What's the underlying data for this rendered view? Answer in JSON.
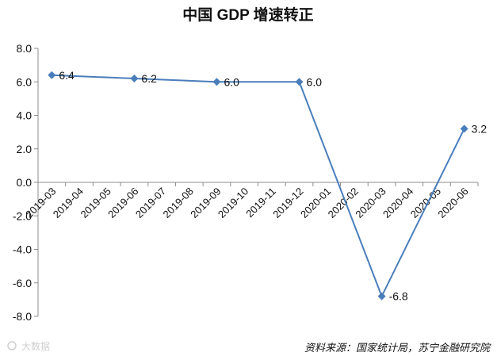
{
  "chart_data": {
    "type": "line",
    "title": "中国 GDP 增速转正",
    "categories": [
      "2019-03",
      "2019-04",
      "2019-05",
      "2019-06",
      "2019-07",
      "2019-08",
      "2019-09",
      "2019-10",
      "2019-11",
      "2019-12",
      "2020-01",
      "2020-02",
      "2020-03",
      "2020-04",
      "2020-05",
      "2020-06"
    ],
    "y_ticks": [
      "8.0",
      "6.0",
      "4.0",
      "2.0",
      "0.0",
      "-2.0",
      "-4.0",
      "-6.0",
      "-8.0"
    ],
    "ylim": [
      -8,
      8
    ],
    "series": [
      {
        "color": "#4a7ebb",
        "marker": "diamond",
        "points": [
          {
            "x": "2019-03",
            "y": 6.4,
            "label": "6.4"
          },
          {
            "x": "2019-06",
            "y": 6.2,
            "label": "6.2"
          },
          {
            "x": "2019-09",
            "y": 6.0,
            "label": "6.0"
          },
          {
            "x": "2019-12",
            "y": 6.0,
            "label": "6.0"
          },
          {
            "x": "2020-03",
            "y": -6.8,
            "label": "-6.8"
          },
          {
            "x": "2020-06",
            "y": 3.2,
            "label": "3.2"
          }
        ]
      }
    ],
    "grid": false,
    "source_note": "资料来源：国家统计局，苏宁金融研究院",
    "watermark": "大数据"
  }
}
